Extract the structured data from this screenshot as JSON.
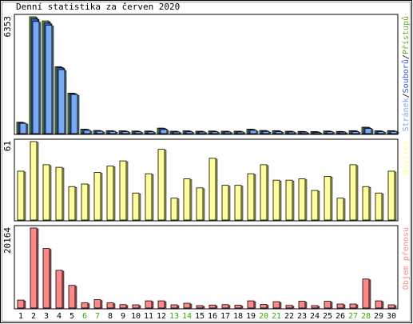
{
  "chart_data": [
    {
      "type": "bar",
      "title": "Denní statistika za červen 2020",
      "ymax_label": "6353",
      "ylim": [
        0,
        6353
      ],
      "categories": [
        "1",
        "2",
        "3",
        "4",
        "5",
        "6",
        "7",
        "8",
        "9",
        "10",
        "11",
        "12",
        "13",
        "14",
        "15",
        "16",
        "17",
        "18",
        "19",
        "20",
        "21",
        "22",
        "23",
        "24",
        "25",
        "26",
        "27",
        "28",
        "29",
        "30"
      ],
      "series": [
        {
          "name": "Přístupů",
          "color": "#66aa22",
          "values": [
            620,
            6353,
            6130,
            3640,
            2200,
            240,
            170,
            160,
            150,
            140,
            140,
            300,
            130,
            150,
            130,
            140,
            130,
            130,
            240,
            170,
            160,
            130,
            120,
            110,
            140,
            120,
            160,
            350,
            150,
            160
          ]
        },
        {
          "name": "Souborů",
          "color": "#3355dd",
          "values": [
            590,
            6260,
            6020,
            3590,
            2180,
            230,
            160,
            150,
            140,
            130,
            130,
            290,
            120,
            140,
            120,
            130,
            120,
            120,
            230,
            160,
            150,
            120,
            110,
            100,
            130,
            110,
            150,
            340,
            140,
            150
          ]
        },
        {
          "name": "Stránek",
          "color": "#77aaee",
          "values": [
            560,
            6100,
            5900,
            3480,
            2130,
            180,
            130,
            120,
            110,
            100,
            100,
            220,
            90,
            100,
            90,
            100,
            90,
            90,
            180,
            120,
            110,
            90,
            80,
            70,
            100,
            80,
            110,
            280,
            110,
            120
          ]
        }
      ],
      "legend_right": [
        "Stránek",
        "/",
        "Souborů",
        "/",
        "Přístupů"
      ]
    },
    {
      "type": "bar",
      "ymax_label": "61",
      "ylim": [
        0,
        61
      ],
      "legend_right": [
        "Návštěv"
      ],
      "series": [
        {
          "name": "Návštěv",
          "color": "#ffff99",
          "values": [
            38,
            61,
            43,
            41,
            26,
            28,
            37,
            42,
            46,
            21,
            36,
            55,
            17,
            32,
            25,
            48,
            27,
            27,
            36,
            43,
            31,
            31,
            32,
            23,
            34,
            17,
            43,
            26,
            21,
            38
          ]
        }
      ]
    },
    {
      "type": "bar",
      "ymax_label": "20164",
      "ylim": [
        0,
        20164
      ],
      "legend_right": [
        "Objem přenosu"
      ],
      "series": [
        {
          "name": "Objem přenosu",
          "color": "#ff8888",
          "values": [
            2000,
            20164,
            15000,
            9500,
            5700,
            1300,
            2100,
            1300,
            850,
            800,
            1800,
            1800,
            800,
            1200,
            600,
            750,
            850,
            700,
            1800,
            900,
            1600,
            650,
            1700,
            600,
            1700,
            1000,
            1000,
            7300,
            1800,
            800
          ]
        }
      ]
    }
  ],
  "weekend_days": [
    "6",
    "7",
    "13",
    "14",
    "20",
    "21",
    "27",
    "28"
  ],
  "colors": {
    "weekday_label": "#000000",
    "weekend_label": "#33aa00",
    "border": "#000000",
    "panel_bg": "#ffffff"
  }
}
